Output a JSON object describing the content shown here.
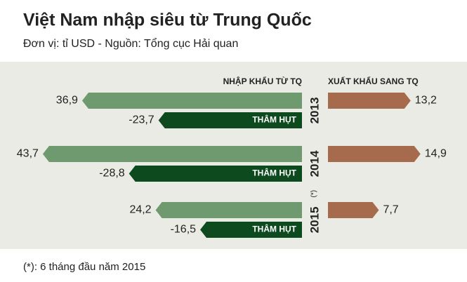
{
  "chart_data": {
    "type": "butterfly",
    "title": "Việt Nam nhập siêu từ Trung Quốc",
    "subtitle": "Đơn vị: tỉ USD - Nguồn: Tổng cục Hải quan",
    "categories": [
      "2013",
      "2014",
      "2015"
    ],
    "series": [
      {
        "name": "NHẬP KHẨU TỪ TQ",
        "color": "#6f9a70",
        "side": "left",
        "values": [
          36.9,
          43.7,
          24.2
        ],
        "value_labels": [
          "36,9",
          "43,7",
          "24,2"
        ]
      },
      {
        "name": "THÂM HỤT",
        "color": "#0d4a1d",
        "side": "left",
        "values": [
          -23.7,
          -28.8,
          -16.5
        ],
        "value_labels": [
          "-23,7",
          "-28,8",
          "-16,5"
        ]
      },
      {
        "name": "XUẤT KHẨU SANG TQ",
        "color": "#a56b4c",
        "side": "right",
        "values": [
          13.2,
          14.9,
          7.7
        ],
        "value_labels": [
          "13,2",
          "14,9",
          "7,7"
        ]
      }
    ],
    "annotations": [
      "(*)",
      "(*): 6 tháng đầu năm 2015"
    ]
  }
}
